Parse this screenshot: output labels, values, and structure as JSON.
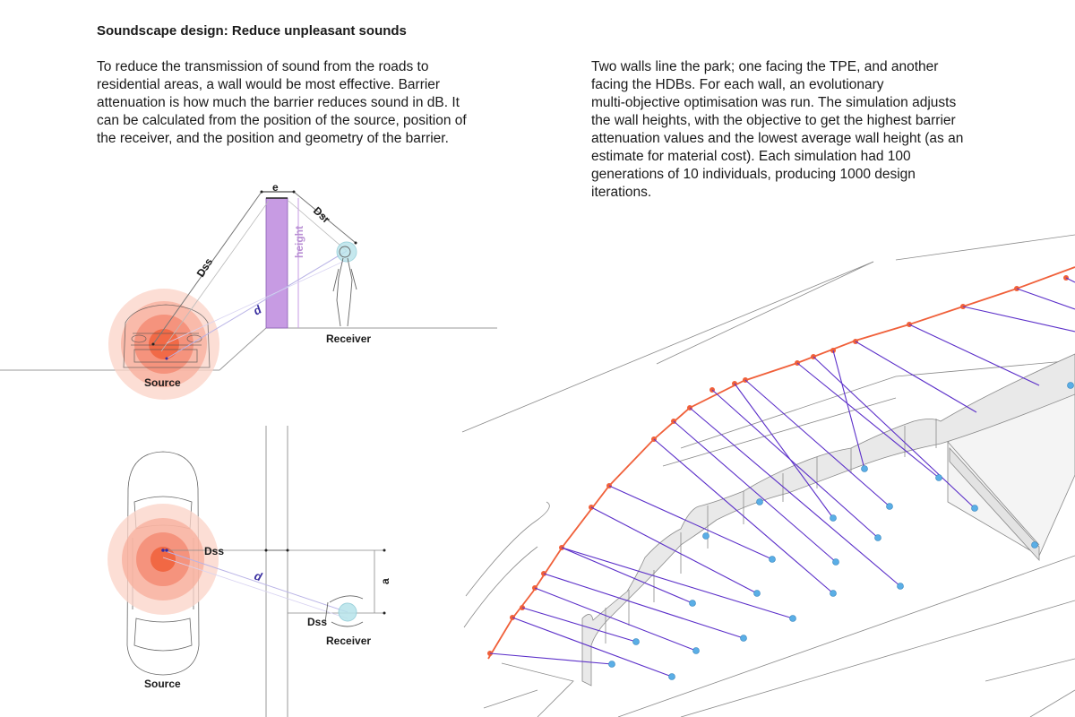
{
  "heading": "Soundscape design: Reduce unpleasant sounds",
  "paragraph_left": "To reduce the transmission of sound from the roads to\nresidential areas, a wall would be most effective. Barrier\nattenuation is how much the barrier reduces sound in dB. It\ncan be calculated from the position of the source, position of\nthe receiver, and the position and geometry of the barrier.",
  "paragraph_right": "Two walls line the park; one facing the TPE, and another\nfacing the HDBs. For each wall, an evolutionary\nmulti-objective optimisation was run. The simulation adjusts\nthe wall heights, with the objective to get the highest barrier\nattenuation values and the lowest average wall height (as an\nestimate for material cost). Each simulation had 100\ngenerations of 10 individuals, producing 1000 design\niterations.",
  "side_diagram": {
    "label_e": "e",
    "label_dss": "Dss",
    "label_dsr": "Dsr",
    "label_height": "height",
    "label_d": "d",
    "label_receiver": "Receiver",
    "label_source": "Source"
  },
  "plan_diagram": {
    "label_dss": "Dss",
    "label_d": "d",
    "label_a": "a",
    "label_dss2": "Dss",
    "label_receiver": "Receiver",
    "label_source": "Source"
  },
  "colors": {
    "wall_purple": "#c79be3",
    "source_red": "#f0603a",
    "edge_orange": "#f0603a",
    "ray_purple": "#5b2fc9",
    "receiver_blue": "#5aaee6",
    "receiver_cyan": "#b7e3ea"
  }
}
